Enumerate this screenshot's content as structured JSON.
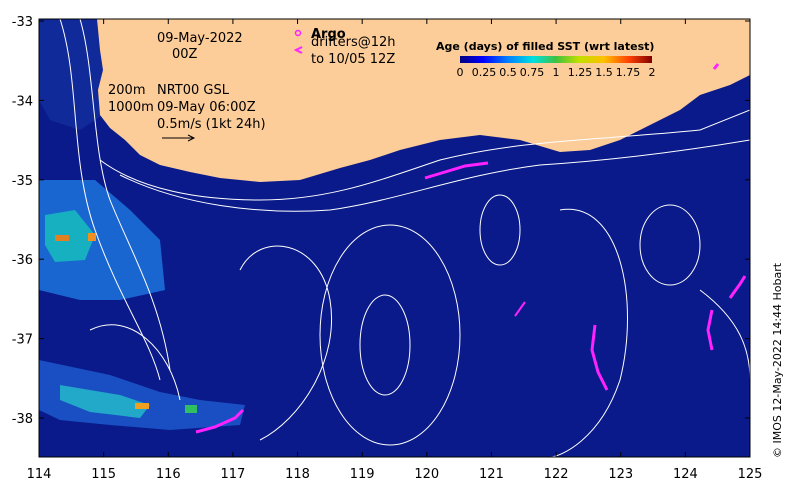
{
  "map": {
    "date_line1": "09-May-2022",
    "date_line2": "00Z",
    "argo_label": "Argo",
    "drifters_line1": "drifters@12h",
    "drifters_line2": "to 10/05 12Z",
    "depth_200": "200m",
    "depth_1000": "1000m",
    "product_line1": "NRT00 GSL",
    "product_line2": "09-May 06:00Z",
    "velocity_scale": "0.5m/s (1kt 24h)",
    "colorbar_title": "Age (days) of filled SST (wrt latest)",
    "colorbar_ticks": [
      "0",
      "0.25",
      "0.5",
      "0.75",
      "1",
      "1.25",
      "1.5",
      "1.75",
      "2"
    ],
    "credit": "© IMOS 12-May-2022 14:44 Hobart",
    "lon_ticks": [
      "114",
      "115",
      "116",
      "117",
      "118",
      "119",
      "120",
      "121",
      "122",
      "123",
      "124",
      "125"
    ],
    "lat_ticks": [
      "-33",
      "-34",
      "-35",
      "-36",
      "-37",
      "-38"
    ],
    "colors": {
      "ocean": "#0a1a8a",
      "land": "#fccc99",
      "drifter": "#ff22ff",
      "contour": "#ffffff"
    }
  }
}
